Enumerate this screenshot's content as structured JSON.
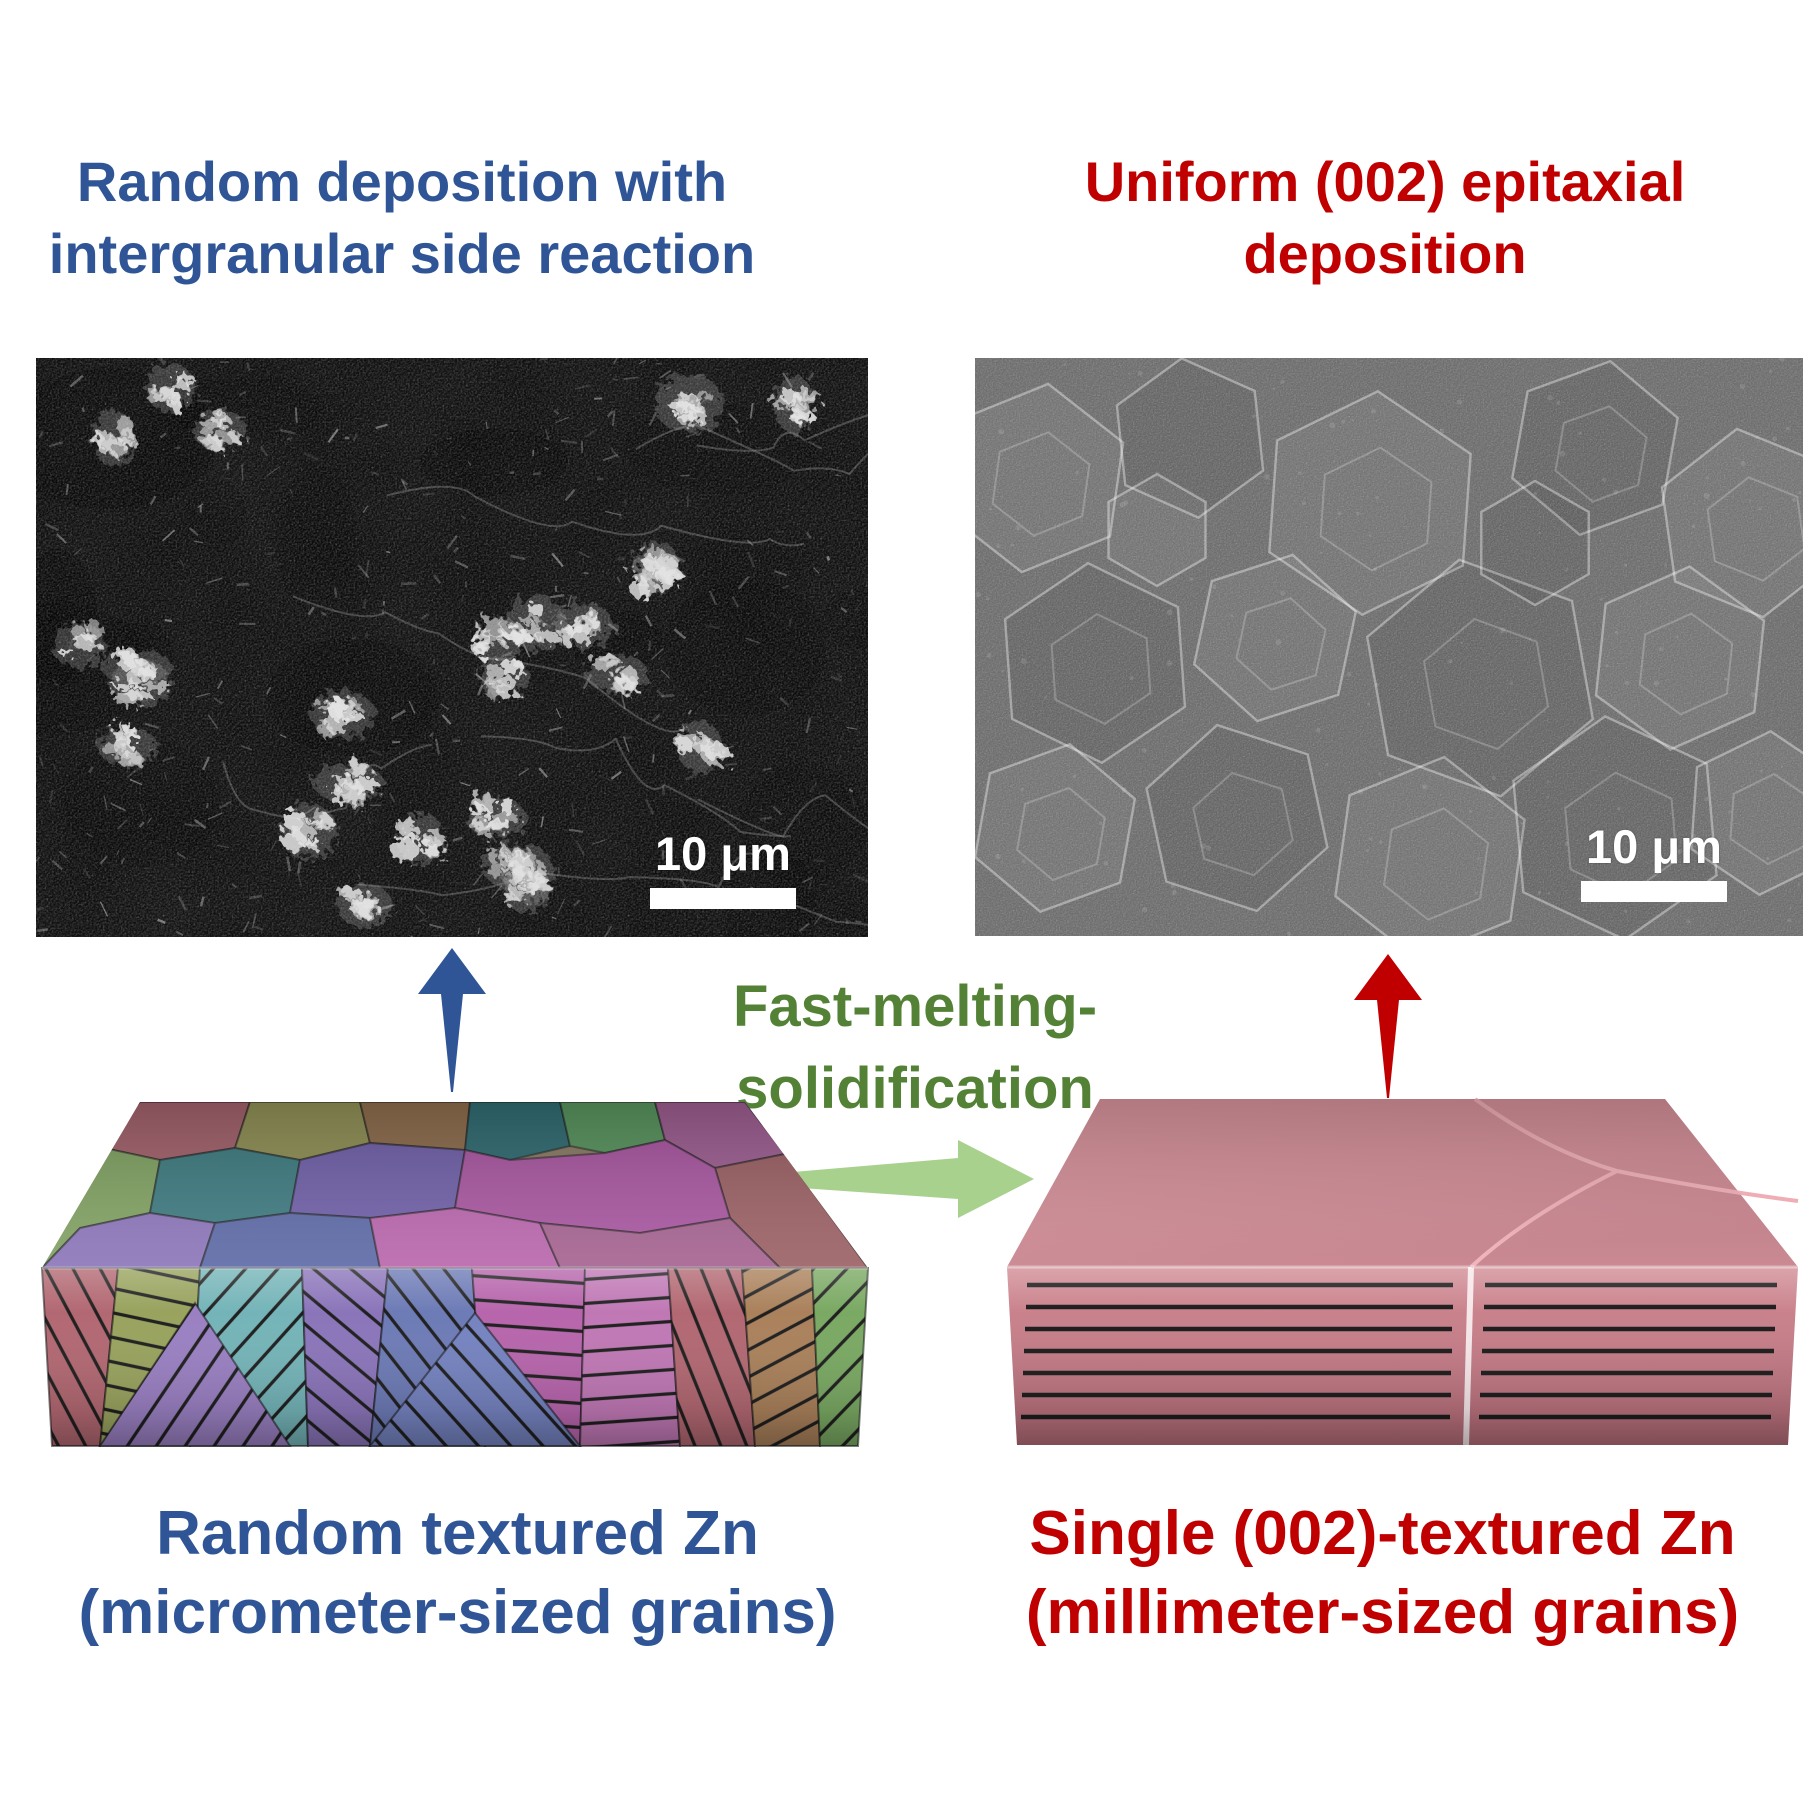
{
  "figure": {
    "left": {
      "title_line1": "Random deposition with",
      "title_line2": "intergranular side reaction",
      "scale_label": "10 μm",
      "caption_line1": "Random textured Zn",
      "caption_line2": "(micrometer-sized grains)"
    },
    "right": {
      "title_line1": "Uniform (002) epitaxial",
      "title_line2": "deposition",
      "scale_label": "10 μm",
      "caption_line1": "Single (002)-textured Zn",
      "caption_line2": "(millimeter-sized grains)"
    },
    "process": {
      "label_line1": "Fast-melting-",
      "label_line2": "solidification"
    },
    "colors": {
      "blue": "#2F5597",
      "red": "#C00000",
      "green_text": "#538135",
      "green_arrow": "#A9D18E",
      "slab_pink": "#CE828C",
      "scale_bar": "#FFFFFF"
    }
  }
}
